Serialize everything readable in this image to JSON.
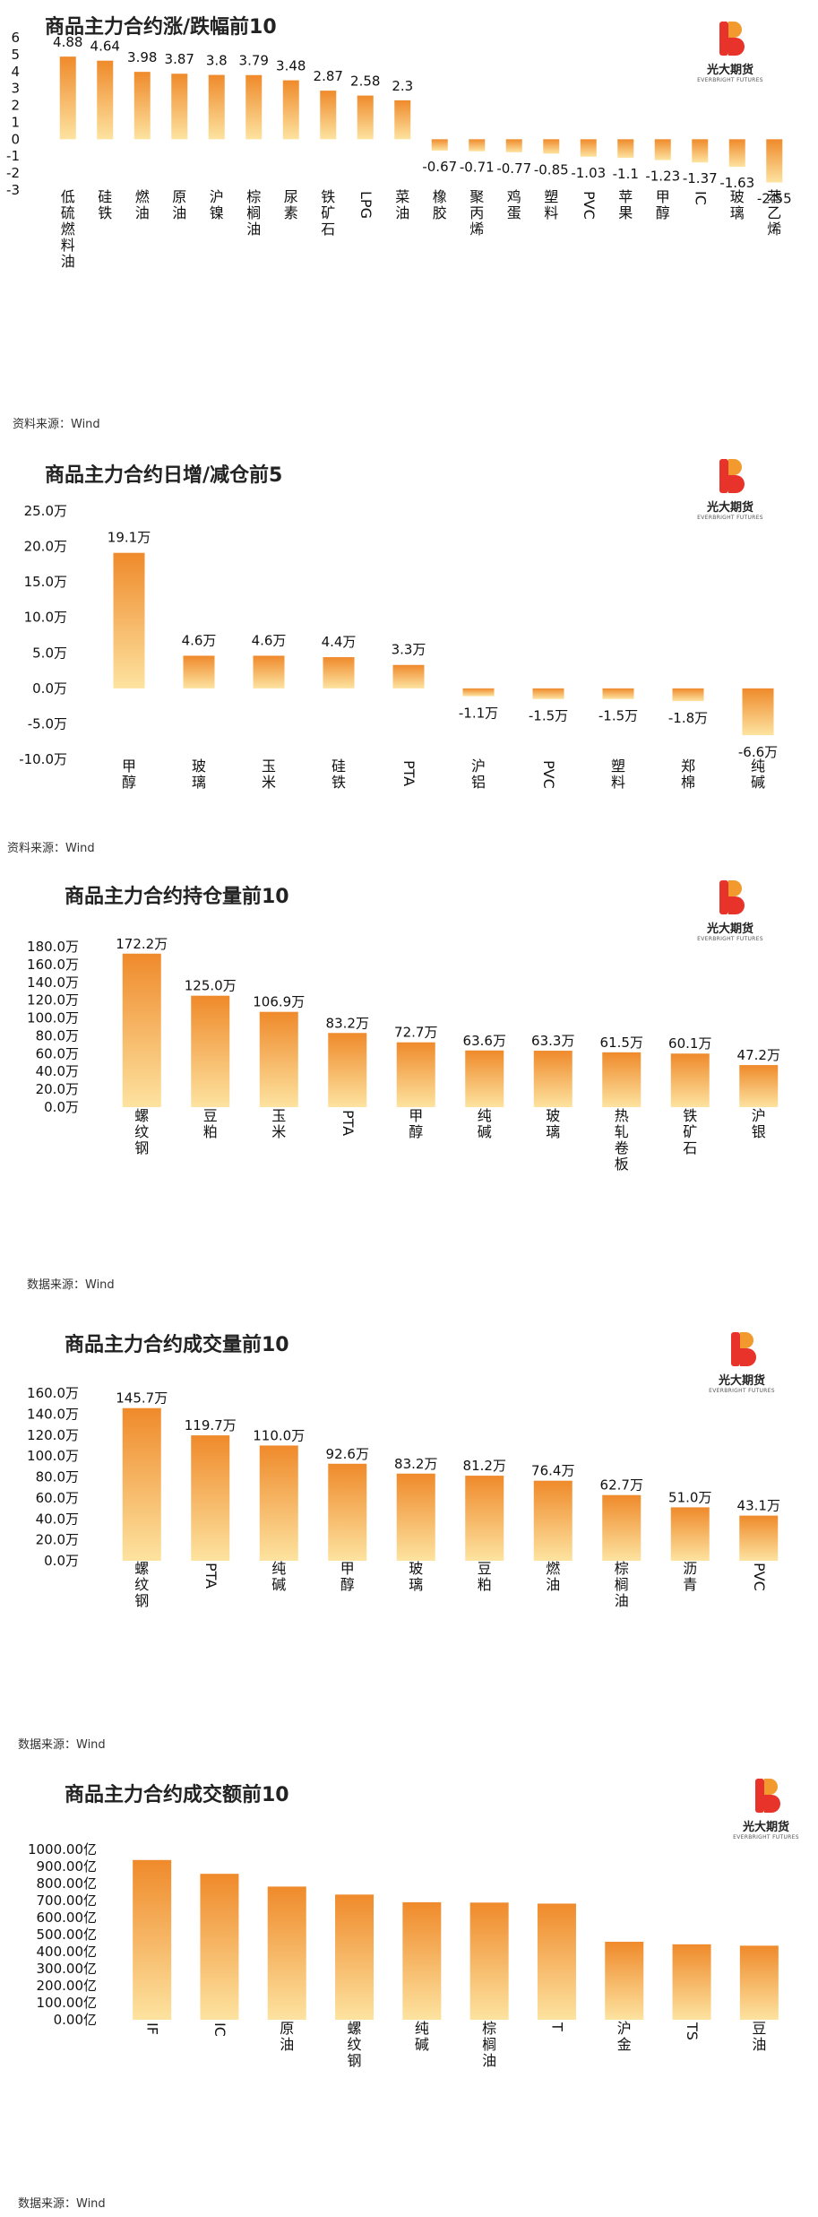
{
  "logo": {
    "name": "光大期货",
    "sub": "EVERBRIGHT FUTURES",
    "colors": [
      "#e8332a",
      "#f29a2e"
    ]
  },
  "bar_gradient": {
    "top": "#ef8a2b",
    "bottom": "#fde3a0"
  },
  "panels": [
    {
      "title": "商品主力合约涨/跌幅前10",
      "source": "资料来源：Wind"
    },
    {
      "title": "商品主力合约日增/减仓前5",
      "source": "资料来源：Wind"
    },
    {
      "title": "商品主力合约持仓量前10",
      "source": "数据来源：Wind"
    },
    {
      "title": "商品主力合约成交量前10",
      "source": "数据来源：Wind"
    },
    {
      "title": "商品主力合约成交额前10",
      "source": "数据来源：Wind"
    }
  ],
  "chart_data": [
    {
      "type": "bar",
      "title": "商品主力合约涨/跌幅前10",
      "categories": [
        "低硫燃料油",
        "硅铁",
        "燃油",
        "原油",
        "沪镍",
        "棕榈油",
        "尿素",
        "铁矿石",
        "LPG",
        "菜油",
        "橡胶",
        "聚丙烯",
        "鸡蛋",
        "塑料",
        "PVC",
        "苹果",
        "甲醇",
        "IC",
        "玻璃",
        "苯乙烯"
      ],
      "values": [
        4.88,
        4.64,
        3.98,
        3.87,
        3.8,
        3.79,
        3.48,
        2.87,
        2.58,
        2.3,
        -0.67,
        -0.71,
        -0.77,
        -0.85,
        -1.03,
        -1.1,
        -1.23,
        -1.37,
        -1.63,
        -2.55
      ],
      "labels": [
        "4.88",
        "4.64",
        "3.98",
        "3.87",
        "3.8",
        "3.79",
        "3.48",
        "2.87",
        "2.58",
        "2.3",
        "-0.67",
        "-0.71",
        "-0.77",
        "-0.85",
        "-1.03",
        "-1.1",
        "-1.23",
        "-1.37",
        "-1.63",
        "-2.55"
      ],
      "yticks": [
        6,
        5,
        4,
        3,
        2,
        1,
        0,
        -1,
        -2,
        -3
      ],
      "ytick_labels": [
        "6",
        "5",
        "4",
        "3",
        "2",
        "1",
        "0",
        "-1",
        "-2",
        "-3"
      ],
      "ylim": [
        -3,
        6
      ]
    },
    {
      "type": "bar",
      "title": "商品主力合约日增/减仓前5",
      "categories": [
        "甲醇",
        "玻璃",
        "玉米",
        "硅铁",
        "PTA",
        "沪铝",
        "PVC",
        "塑料",
        "郑棉",
        "纯碱"
      ],
      "values": [
        19.1,
        4.6,
        4.6,
        4.4,
        3.3,
        -1.1,
        -1.5,
        -1.5,
        -1.8,
        -6.6
      ],
      "labels": [
        "19.1万",
        "4.6万",
        "4.6万",
        "4.4万",
        "3.3万",
        "-1.1万",
        "-1.5万",
        "-1.5万",
        "-1.8万",
        "-6.6万"
      ],
      "yticks": [
        25,
        20,
        15,
        10,
        5,
        0,
        -5,
        -10
      ],
      "ytick_labels": [
        "25.0万",
        "20.0万",
        "15.0万",
        "10.0万",
        "5.0万",
        "0.0万",
        "-5.0万",
        "-10.0万"
      ],
      "ylim": [
        -10,
        25
      ]
    },
    {
      "type": "bar",
      "title": "商品主力合约持仓量前10",
      "categories": [
        "螺纹钢",
        "豆粕",
        "玉米",
        "PTA",
        "甲醇",
        "纯碱",
        "玻璃",
        "热轧卷板",
        "铁矿石",
        "沪银"
      ],
      "values": [
        172.2,
        125.0,
        106.9,
        83.2,
        72.7,
        63.6,
        63.3,
        61.5,
        60.1,
        47.2
      ],
      "labels": [
        "172.2万",
        "125.0万",
        "106.9万",
        "83.2万",
        "72.7万",
        "63.6万",
        "63.3万",
        "61.5万",
        "60.1万",
        "47.2万"
      ],
      "yticks": [
        180,
        160,
        140,
        120,
        100,
        80,
        60,
        40,
        20,
        0
      ],
      "ytick_labels": [
        "180.0万",
        "160.0万",
        "140.0万",
        "120.0万",
        "100.0万",
        "80.0万",
        "60.0万",
        "40.0万",
        "20.0万",
        "0.0万"
      ],
      "ylim": [
        0,
        180
      ]
    },
    {
      "type": "bar",
      "title": "商品主力合约成交量前10",
      "categories": [
        "螺纹钢",
        "PTA",
        "纯碱",
        "甲醇",
        "玻璃",
        "豆粕",
        "燃油",
        "棕榈油",
        "沥青",
        "PVC"
      ],
      "values": [
        145.7,
        119.7,
        110.0,
        92.6,
        83.2,
        81.2,
        76.4,
        62.7,
        51.0,
        43.1
      ],
      "labels": [
        "145.7万",
        "119.7万",
        "110.0万",
        "92.6万",
        "83.2万",
        "81.2万",
        "76.4万",
        "62.7万",
        "51.0万",
        "43.1万"
      ],
      "yticks": [
        160,
        140,
        120,
        100,
        80,
        60,
        40,
        20,
        0
      ],
      "ytick_labels": [
        "160.0万",
        "140.0万",
        "120.0万",
        "100.0万",
        "80.0万",
        "60.0万",
        "40.0万",
        "20.0万",
        "0.0万"
      ],
      "ylim": [
        0,
        160
      ]
    },
    {
      "type": "bar",
      "title": "商品主力合约成交额前10",
      "categories": [
        "IF",
        "IC",
        "原油",
        "螺纹钢",
        "纯碱",
        "棕榈油",
        "T",
        "沪金",
        "TS",
        "豆油"
      ],
      "values": [
        938,
        857,
        782,
        735,
        690,
        688,
        682,
        458,
        443,
        435
      ],
      "labels": [],
      "yticks": [
        1000,
        900,
        800,
        700,
        600,
        500,
        400,
        300,
        200,
        100,
        0
      ],
      "ytick_labels": [
        "1000.00亿",
        "900.00亿",
        "800.00亿",
        "700.00亿",
        "600.00亿",
        "500.00亿",
        "400.00亿",
        "300.00亿",
        "200.00亿",
        "100.00亿",
        "0.00亿"
      ],
      "ylim": [
        0,
        1000
      ]
    }
  ]
}
